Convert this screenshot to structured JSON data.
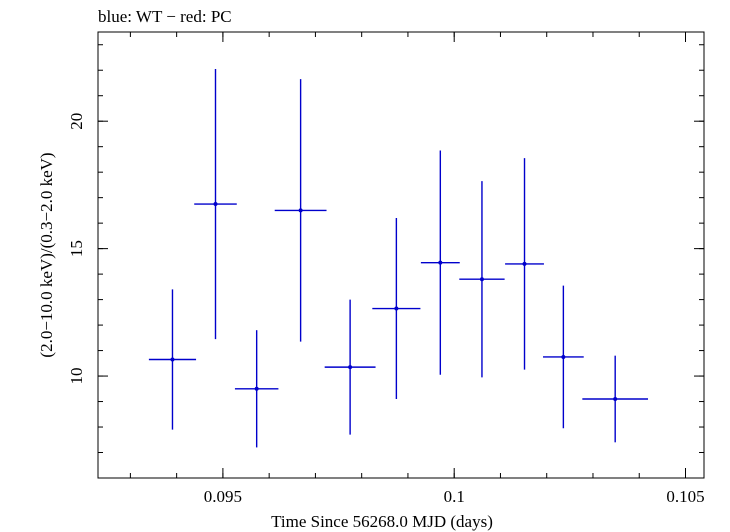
{
  "header": {
    "title": "blue: WT − red: PC"
  },
  "chart_data": {
    "type": "scatter",
    "title": "blue: WT − red: PC",
    "xlabel": "Time Since 56268.0 MJD (days)",
    "ylabel": "(2.0−10.0 keV)/(0.3−2.0 keV)",
    "xlim": [
      0.0923,
      0.1054
    ],
    "ylim": [
      6.0,
      23.5
    ],
    "x_ticks": [
      {
        "value": 0.095,
        "label": "0.095"
      },
      {
        "value": 0.1,
        "label": "0.1"
      },
      {
        "value": 0.105,
        "label": "0.105"
      }
    ],
    "y_ticks": [
      {
        "value": 10,
        "label": "10"
      },
      {
        "value": 15,
        "label": "15"
      },
      {
        "value": 20,
        "label": "20"
      }
    ],
    "grid": false,
    "series": [
      {
        "color": "#0000cc",
        "points": [
          {
            "x": 0.09391,
            "xerr": 0.00051,
            "y": 10.65,
            "yerr_low": 2.75,
            "yerr_high": 2.75
          },
          {
            "x": 0.09484,
            "xerr": 0.00046,
            "y": 16.75,
            "yerr_low": 5.3,
            "yerr_high": 5.3
          },
          {
            "x": 0.09573,
            "xerr": 0.00047,
            "y": 9.5,
            "yerr_low": 2.3,
            "yerr_high": 2.3
          },
          {
            "x": 0.09668,
            "xerr": 0.00056,
            "y": 16.5,
            "yerr_low": 5.15,
            "yerr_high": 5.15
          },
          {
            "x": 0.09775,
            "xerr": 0.00055,
            "y": 10.35,
            "yerr_low": 2.65,
            "yerr_high": 2.65
          },
          {
            "x": 0.09875,
            "xerr": 0.00052,
            "y": 12.65,
            "yerr_low": 3.55,
            "yerr_high": 3.55
          },
          {
            "x": 0.0997,
            "xerr": 0.00042,
            "y": 14.45,
            "yerr_low": 4.4,
            "yerr_high": 4.4
          },
          {
            "x": 0.1006,
            "xerr": 0.00049,
            "y": 13.8,
            "yerr_low": 3.85,
            "yerr_high": 3.85
          },
          {
            "x": 0.10152,
            "xerr": 0.00042,
            "y": 14.4,
            "yerr_low": 4.15,
            "yerr_high": 4.15
          },
          {
            "x": 0.10236,
            "xerr": 0.00044,
            "y": 10.75,
            "yerr_low": 2.8,
            "yerr_high": 2.8
          },
          {
            "x": 0.10348,
            "xerr": 0.00071,
            "y": 9.1,
            "yerr_low": 1.7,
            "yerr_high": 1.7
          }
        ]
      }
    ]
  }
}
